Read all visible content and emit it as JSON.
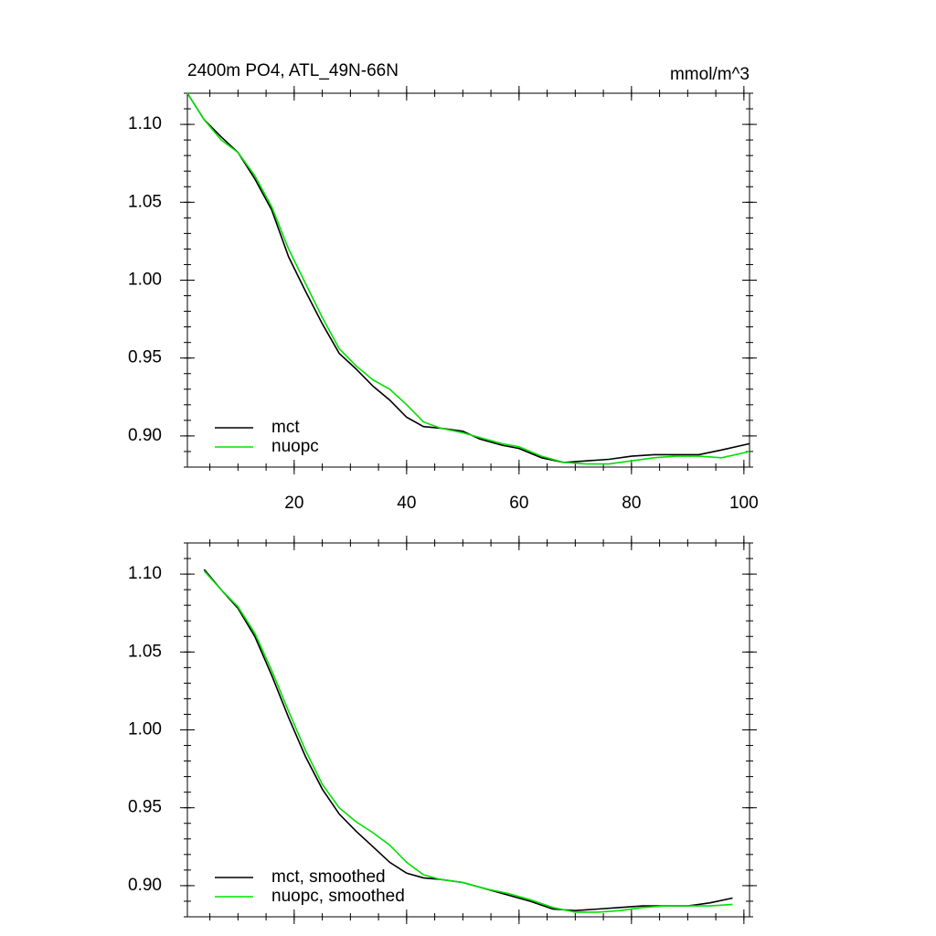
{
  "chart_data": [
    {
      "type": "line",
      "title": "2400m PO4, ATL_49N-66N",
      "units": "mmol/m^3",
      "xlim": [
        1,
        101
      ],
      "xticks": [
        20,
        40,
        60,
        80,
        100
      ],
      "show_xtick_labels": true,
      "ylim": [
        0.88,
        1.12
      ],
      "yticks": [
        {
          "value": 0.9,
          "label": "0.90"
        },
        0.95,
        {
          "value": 1.0,
          "label": "1.00"
        },
        1.05,
        {
          "value": 1.1,
          "label": "1.10"
        }
      ],
      "legend": "lower left",
      "series": [
        {
          "name": "mct",
          "color": "#000000",
          "x": [
            1,
            4,
            7,
            10,
            13,
            16,
            19,
            22,
            25,
            28,
            31,
            34,
            37,
            40,
            43,
            46,
            50,
            53,
            57,
            60,
            64,
            68,
            72,
            76,
            80,
            84,
            88,
            92,
            96,
            101
          ],
          "values": [
            1.12,
            1.103,
            1.092,
            1.082,
            1.065,
            1.045,
            1.015,
            0.993,
            0.972,
            0.953,
            0.943,
            0.932,
            0.923,
            0.912,
            0.906,
            0.905,
            0.903,
            0.898,
            0.894,
            0.892,
            0.886,
            0.883,
            0.884,
            0.885,
            0.887,
            0.888,
            0.888,
            0.888,
            0.891,
            0.895
          ]
        },
        {
          "name": "nuopc",
          "color": "#00e000",
          "x": [
            1,
            4,
            7,
            10,
            13,
            16,
            19,
            22,
            25,
            28,
            31,
            34,
            37,
            40,
            43,
            46,
            50,
            53,
            57,
            60,
            64,
            68,
            72,
            76,
            80,
            84,
            88,
            92,
            96,
            101
          ],
          "values": [
            1.12,
            1.103,
            1.09,
            1.082,
            1.067,
            1.047,
            1.02,
            0.998,
            0.976,
            0.956,
            0.945,
            0.936,
            0.93,
            0.92,
            0.909,
            0.905,
            0.902,
            0.899,
            0.895,
            0.893,
            0.887,
            0.883,
            0.882,
            0.882,
            0.884,
            0.886,
            0.887,
            0.887,
            0.886,
            0.89
          ]
        }
      ]
    },
    {
      "type": "line",
      "xlim": [
        1,
        101
      ],
      "xticks": [
        20,
        40,
        60,
        80,
        100
      ],
      "show_xtick_labels": false,
      "ylim": [
        0.88,
        1.12
      ],
      "yticks": [
        {
          "value": 0.9,
          "label": "0.90"
        },
        0.95,
        {
          "value": 1.0,
          "label": "1.00"
        },
        1.05,
        {
          "value": 1.1,
          "label": "1.10"
        }
      ],
      "legend": "lower left",
      "series": [
        {
          "name": "mct, smoothed",
          "color": "#000000",
          "x": [
            4,
            7,
            10,
            13,
            16,
            19,
            22,
            25,
            28,
            31,
            34,
            37,
            40,
            43,
            46,
            50,
            54,
            58,
            62,
            66,
            70,
            74,
            78,
            82,
            86,
            90,
            94,
            98
          ],
          "values": [
            1.103,
            1.09,
            1.078,
            1.06,
            1.035,
            1.008,
            0.983,
            0.962,
            0.946,
            0.935,
            0.925,
            0.915,
            0.908,
            0.905,
            0.904,
            0.902,
            0.898,
            0.894,
            0.89,
            0.885,
            0.884,
            0.885,
            0.886,
            0.887,
            0.887,
            0.887,
            0.889,
            0.892
          ]
        },
        {
          "name": "nuopc, smoothed",
          "color": "#00e000",
          "x": [
            4,
            7,
            10,
            13,
            16,
            19,
            22,
            25,
            28,
            31,
            34,
            37,
            40,
            43,
            46,
            50,
            54,
            58,
            62,
            66,
            70,
            74,
            78,
            82,
            86,
            90,
            94,
            98
          ],
          "values": [
            1.102,
            1.09,
            1.079,
            1.062,
            1.038,
            1.012,
            0.987,
            0.965,
            0.95,
            0.941,
            0.934,
            0.926,
            0.915,
            0.907,
            0.904,
            0.902,
            0.898,
            0.895,
            0.891,
            0.886,
            0.883,
            0.883,
            0.884,
            0.886,
            0.887,
            0.887,
            0.887,
            0.888
          ]
        }
      ]
    }
  ]
}
